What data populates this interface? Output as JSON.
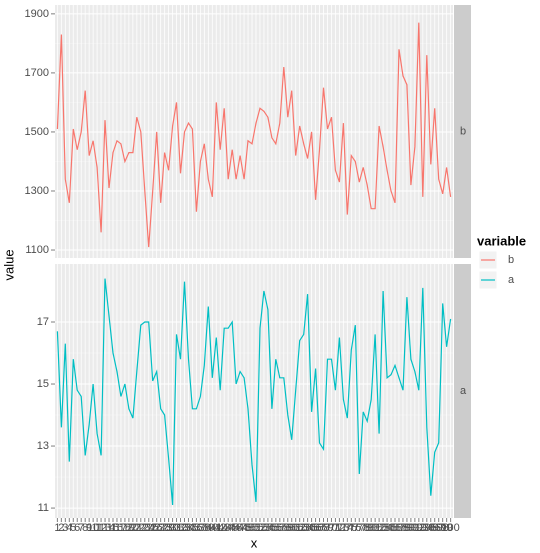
{
  "chart_data": {
    "type": "line",
    "x_label": "x",
    "y_label": "value",
    "legend_title": "variable",
    "grid": true,
    "x": [
      1,
      2,
      3,
      4,
      5,
      6,
      7,
      8,
      9,
      10,
      11,
      12,
      13,
      14,
      15,
      16,
      17,
      18,
      19,
      20,
      21,
      22,
      23,
      24,
      25,
      26,
      27,
      28,
      29,
      30,
      31,
      32,
      33,
      34,
      35,
      36,
      37,
      38,
      39,
      40,
      41,
      42,
      43,
      44,
      45,
      46,
      47,
      48,
      49,
      50,
      51,
      52,
      53,
      54,
      55,
      56,
      57,
      58,
      59,
      60,
      61,
      62,
      63,
      64,
      65,
      66,
      67,
      68,
      69,
      70,
      71,
      72,
      73,
      74,
      75,
      76,
      77,
      78,
      79,
      80,
      81,
      82,
      83,
      84,
      85,
      86,
      87,
      88,
      89,
      90,
      91,
      92,
      93,
      94,
      95,
      96,
      97,
      98,
      99,
      100
    ],
    "series": [
      {
        "name": "b",
        "color": "#F8766D",
        "ylim": [
          1073,
          1930
        ],
        "yticks": [
          1100,
          1300,
          1500,
          1700,
          1900
        ],
        "values": [
          1510,
          1830,
          1340,
          1260,
          1510,
          1440,
          1500,
          1640,
          1420,
          1470,
          1380,
          1160,
          1540,
          1310,
          1430,
          1470,
          1460,
          1400,
          1430,
          1430,
          1550,
          1500,
          1300,
          1110,
          1300,
          1500,
          1260,
          1430,
          1370,
          1520,
          1600,
          1360,
          1500,
          1530,
          1510,
          1230,
          1400,
          1460,
          1340,
          1280,
          1600,
          1440,
          1580,
          1340,
          1440,
          1340,
          1420,
          1340,
          1470,
          1460,
          1530,
          1580,
          1570,
          1550,
          1480,
          1460,
          1530,
          1720,
          1550,
          1640,
          1420,
          1520,
          1460,
          1410,
          1500,
          1270,
          1440,
          1650,
          1510,
          1550,
          1370,
          1330,
          1530,
          1220,
          1420,
          1400,
          1330,
          1380,
          1320,
          1240,
          1240,
          1520,
          1450,
          1370,
          1300,
          1260,
          1780,
          1690,
          1660,
          1320,
          1450,
          1870,
          1280,
          1760,
          1390,
          1580,
          1340,
          1290,
          1380,
          1280
        ]
      },
      {
        "name": "a",
        "color": "#00BFC4",
        "ylim": [
          10.68,
          18.87
        ],
        "yticks": [
          11,
          13,
          15,
          17
        ],
        "values": [
          16.7,
          13.6,
          16.3,
          12.5,
          15.8,
          14.8,
          14.6,
          12.7,
          13.7,
          15.0,
          13.4,
          12.7,
          18.4,
          17.2,
          16.0,
          15.4,
          14.6,
          15.0,
          14.2,
          13.9,
          15.4,
          16.9,
          17.0,
          17.0,
          15.1,
          15.4,
          14.2,
          14.0,
          12.6,
          11.1,
          16.6,
          15.8,
          18.3,
          15.8,
          14.2,
          14.2,
          14.6,
          15.6,
          17.5,
          15.2,
          16.5,
          14.8,
          16.8,
          16.8,
          17.0,
          15.0,
          15.4,
          15.2,
          14.2,
          12.4,
          11.2,
          16.8,
          18.0,
          17.4,
          14.2,
          15.8,
          15.2,
          15.2,
          14.0,
          13.2,
          14.8,
          16.4,
          16.6,
          17.9,
          14.1,
          15.5,
          13.1,
          12.9,
          15.8,
          15.8,
          14.8,
          16.5,
          14.5,
          13.9,
          16.1,
          16.9,
          12.1,
          14.1,
          13.8,
          14.5,
          16.6,
          13.4,
          18.0,
          15.2,
          15.3,
          15.6,
          15.2,
          14.8,
          17.8,
          15.8,
          15.4,
          14.8,
          18.1,
          13.6,
          11.4,
          12.8,
          13.1,
          17.6,
          16.2,
          17.1
        ]
      }
    ]
  }
}
